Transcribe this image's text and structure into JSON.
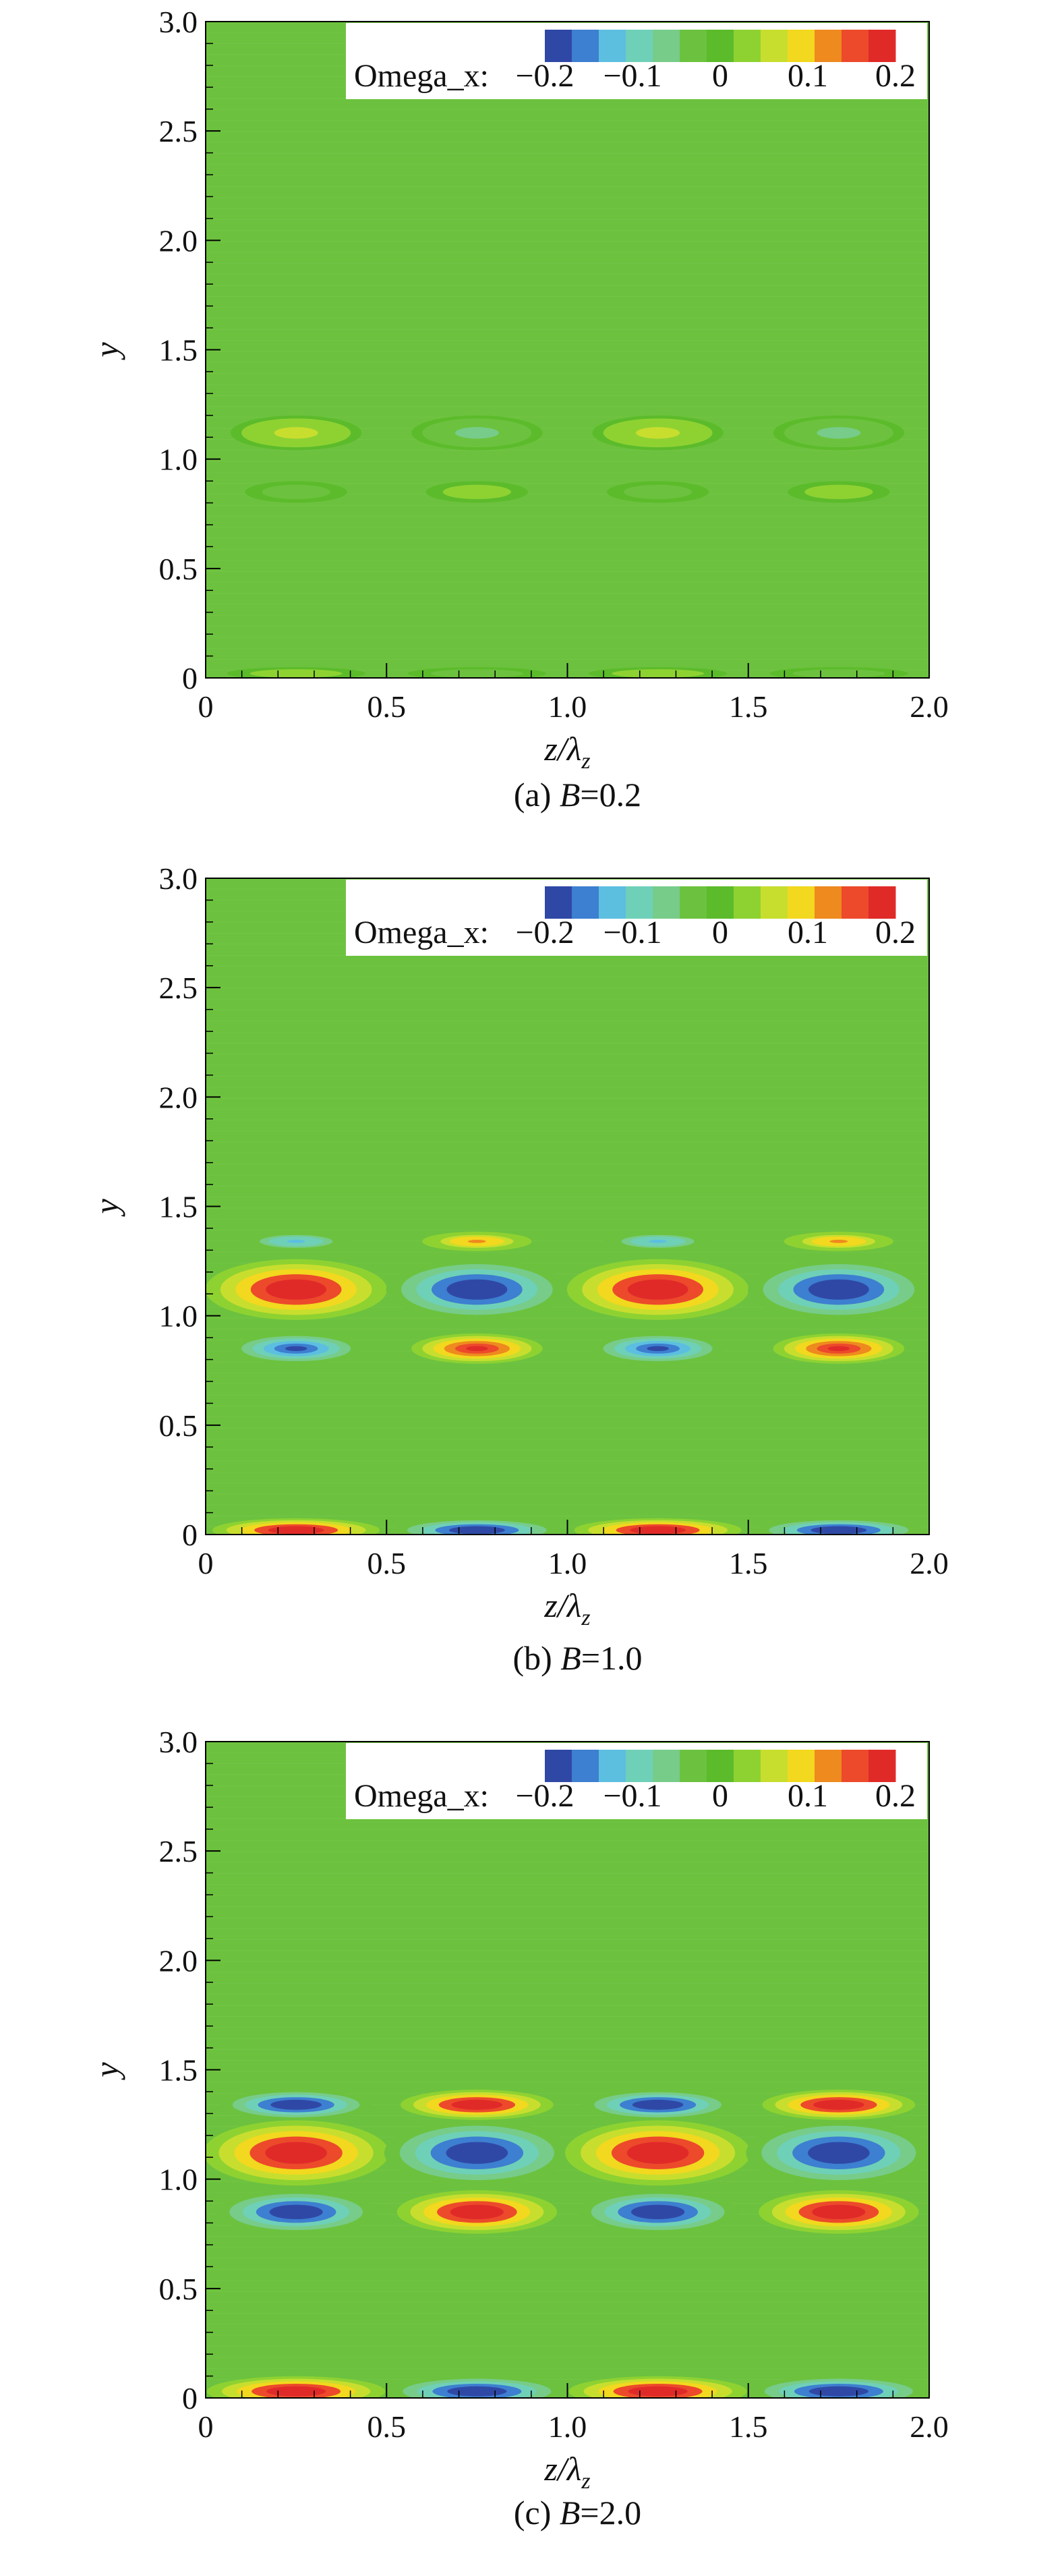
{
  "chart_data": [
    {
      "type": "heatmap",
      "caption": {
        "prefix": "(a) ",
        "var": "B",
        "suffix": "=0.2"
      },
      "xlabel": {
        "main": "z/λ",
        "sub": "z"
      },
      "ylabel": "y",
      "xlim": [
        0,
        2.0
      ],
      "ylim": [
        0,
        3.0
      ],
      "xticks": [
        "0",
        "0.5",
        "1.0",
        "1.5",
        "2.0"
      ],
      "yticks": [
        "0",
        "0.5",
        "1.0",
        "1.5",
        "2.0",
        "2.5",
        "3.0"
      ],
      "legend": {
        "label": "Omega_x:",
        "position": "top-right",
        "tick_labels": [
          "−0.2",
          "−0.1",
          "0",
          "0.1",
          "0.2"
        ],
        "levels": [
          -0.2,
          -0.1,
          0,
          0.1,
          0.2
        ]
      },
      "colormap": [
        "#2f48a6",
        "#3d7fd0",
        "#5cbfe0",
        "#6fd0b8",
        "#77cc8a",
        "#6cc23e",
        "#5cbb2b",
        "#8ed232",
        "#c8de2e",
        "#f2d81e",
        "#ee8a1e",
        "#ec4a2b",
        "#e02a28"
      ],
      "structures": [
        {
          "z": 0.25,
          "y": 1.12,
          "rz": 0.17,
          "ry": 0.07,
          "value": 0.06
        },
        {
          "z": 0.75,
          "y": 1.12,
          "rz": 0.17,
          "ry": 0.07,
          "value": -0.06
        },
        {
          "z": 1.25,
          "y": 1.12,
          "rz": 0.17,
          "ry": 0.07,
          "value": 0.06
        },
        {
          "z": 1.75,
          "y": 1.12,
          "rz": 0.17,
          "ry": 0.07,
          "value": -0.06
        },
        {
          "z": 0.25,
          "y": 0.85,
          "rz": 0.13,
          "ry": 0.04,
          "value": -0.03
        },
        {
          "z": 0.75,
          "y": 0.85,
          "rz": 0.13,
          "ry": 0.04,
          "value": 0.03
        },
        {
          "z": 1.25,
          "y": 0.85,
          "rz": 0.13,
          "ry": 0.04,
          "value": -0.03
        },
        {
          "z": 1.75,
          "y": 0.85,
          "rz": 0.13,
          "ry": 0.04,
          "value": 0.03
        },
        {
          "z": 0.25,
          "y": 0.02,
          "rz": 0.18,
          "ry": 0.02,
          "value": 0.03
        },
        {
          "z": 0.75,
          "y": 0.02,
          "rz": 0.18,
          "ry": 0.02,
          "value": -0.03
        },
        {
          "z": 1.25,
          "y": 0.02,
          "rz": 0.18,
          "ry": 0.02,
          "value": 0.03
        },
        {
          "z": 1.75,
          "y": 0.02,
          "rz": 0.18,
          "ry": 0.02,
          "value": -0.03
        }
      ]
    },
    {
      "type": "heatmap",
      "caption": {
        "prefix": "(b) ",
        "var": "B",
        "suffix": "=1.0"
      },
      "xlabel": {
        "main": "z/λ",
        "sub": "z"
      },
      "ylabel": "y",
      "xlim": [
        0,
        2.0
      ],
      "ylim": [
        0,
        3.0
      ],
      "xticks": [
        "0",
        "0.5",
        "1.0",
        "1.5",
        "2.0"
      ],
      "yticks": [
        "0",
        "0.5",
        "1.0",
        "1.5",
        "2.0",
        "2.5",
        "3.0"
      ],
      "legend": {
        "label": "Omega_x:",
        "position": "top-right",
        "tick_labels": [
          "−0.2",
          "−0.1",
          "0",
          "0.1",
          "0.2"
        ],
        "levels": [
          -0.2,
          -0.1,
          0,
          0.1,
          0.2
        ]
      },
      "colormap": [
        "#2f48a6",
        "#3d7fd0",
        "#5cbfe0",
        "#6fd0b8",
        "#77cc8a",
        "#6cc23e",
        "#5cbb2b",
        "#8ed232",
        "#c8de2e",
        "#f2d81e",
        "#ee8a1e",
        "#ec4a2b",
        "#e02a28"
      ],
      "structures": [
        {
          "z": 0.25,
          "y": 1.12,
          "rz": 0.24,
          "ry": 0.13,
          "value": 0.2
        },
        {
          "z": 0.75,
          "y": 1.12,
          "rz": 0.24,
          "ry": 0.13,
          "value": -0.2
        },
        {
          "z": 1.25,
          "y": 1.12,
          "rz": 0.24,
          "ry": 0.13,
          "value": 0.2
        },
        {
          "z": 1.75,
          "y": 1.12,
          "rz": 0.24,
          "ry": 0.13,
          "value": -0.2
        },
        {
          "z": 0.25,
          "y": 1.34,
          "rz": 0.14,
          "ry": 0.035,
          "value": -0.12
        },
        {
          "z": 0.75,
          "y": 1.34,
          "rz": 0.14,
          "ry": 0.035,
          "value": 0.12
        },
        {
          "z": 1.25,
          "y": 1.34,
          "rz": 0.14,
          "ry": 0.035,
          "value": -0.12
        },
        {
          "z": 1.75,
          "y": 1.34,
          "rz": 0.14,
          "ry": 0.035,
          "value": 0.12
        },
        {
          "z": 0.25,
          "y": 0.85,
          "rz": 0.17,
          "ry": 0.06,
          "value": -0.18
        },
        {
          "z": 0.75,
          "y": 0.85,
          "rz": 0.17,
          "ry": 0.06,
          "value": 0.18
        },
        {
          "z": 1.25,
          "y": 0.85,
          "rz": 0.17,
          "ry": 0.06,
          "value": -0.18
        },
        {
          "z": 1.75,
          "y": 0.85,
          "rz": 0.17,
          "ry": 0.06,
          "value": 0.18
        },
        {
          "z": 0.25,
          "y": 0.02,
          "rz": 0.22,
          "ry": 0.045,
          "value": 0.2
        },
        {
          "z": 0.75,
          "y": 0.02,
          "rz": 0.22,
          "ry": 0.045,
          "value": -0.2
        },
        {
          "z": 1.25,
          "y": 0.02,
          "rz": 0.22,
          "ry": 0.045,
          "value": 0.2
        },
        {
          "z": 1.75,
          "y": 0.02,
          "rz": 0.22,
          "ry": 0.045,
          "value": -0.2
        }
      ]
    },
    {
      "type": "heatmap",
      "caption": {
        "prefix": "(c) ",
        "var": "B",
        "suffix": "=2.0"
      },
      "xlabel": {
        "main": "z/λ",
        "sub": "z"
      },
      "ylabel": "y",
      "xlim": [
        0,
        2.0
      ],
      "ylim": [
        0,
        3.0
      ],
      "xticks": [
        "0",
        "0.5",
        "1.0",
        "1.5",
        "2.0"
      ],
      "yticks": [
        "0",
        "0.5",
        "1.0",
        "1.5",
        "2.0",
        "2.5",
        "3.0"
      ],
      "legend": {
        "label": "Omega_x:",
        "position": "top-right",
        "tick_labels": [
          "−0.2",
          "−0.1",
          "0",
          "0.1",
          "0.2"
        ],
        "levels": [
          -0.2,
          -0.1,
          0,
          0.1,
          0.2
        ]
      },
      "colormap": [
        "#2f48a6",
        "#3d7fd0",
        "#5cbfe0",
        "#6fd0b8",
        "#77cc8a",
        "#6cc23e",
        "#5cbb2b",
        "#8ed232",
        "#c8de2e",
        "#f2d81e",
        "#ee8a1e",
        "#ec4a2b",
        "#e02a28"
      ],
      "structures": [
        {
          "z": 0.25,
          "y": 1.12,
          "rz": 0.245,
          "ry": 0.14,
          "value": 0.2
        },
        {
          "z": 0.75,
          "y": 1.12,
          "rz": 0.245,
          "ry": 0.14,
          "value": -0.2
        },
        {
          "z": 1.25,
          "y": 1.12,
          "rz": 0.245,
          "ry": 0.14,
          "value": 0.2
        },
        {
          "z": 1.75,
          "y": 1.12,
          "rz": 0.245,
          "ry": 0.14,
          "value": -0.2
        },
        {
          "z": 0.25,
          "y": 1.34,
          "rz": 0.2,
          "ry": 0.06,
          "value": -0.2
        },
        {
          "z": 0.75,
          "y": 1.34,
          "rz": 0.2,
          "ry": 0.06,
          "value": 0.2
        },
        {
          "z": 1.25,
          "y": 1.34,
          "rz": 0.2,
          "ry": 0.06,
          "value": -0.2
        },
        {
          "z": 1.75,
          "y": 1.34,
          "rz": 0.2,
          "ry": 0.06,
          "value": 0.2
        },
        {
          "z": 0.25,
          "y": 0.85,
          "rz": 0.21,
          "ry": 0.09,
          "value": -0.2
        },
        {
          "z": 0.75,
          "y": 0.85,
          "rz": 0.21,
          "ry": 0.09,
          "value": 0.2
        },
        {
          "z": 1.25,
          "y": 0.85,
          "rz": 0.21,
          "ry": 0.09,
          "value": -0.2
        },
        {
          "z": 1.75,
          "y": 0.85,
          "rz": 0.21,
          "ry": 0.09,
          "value": 0.2
        },
        {
          "z": 0.25,
          "y": 0.03,
          "rz": 0.235,
          "ry": 0.06,
          "value": 0.2
        },
        {
          "z": 0.75,
          "y": 0.03,
          "rz": 0.235,
          "ry": 0.06,
          "value": -0.2
        },
        {
          "z": 1.25,
          "y": 0.03,
          "rz": 0.235,
          "ry": 0.06,
          "value": 0.2
        },
        {
          "z": 1.75,
          "y": 0.03,
          "rz": 0.235,
          "ry": 0.06,
          "value": -0.2
        }
      ]
    }
  ]
}
